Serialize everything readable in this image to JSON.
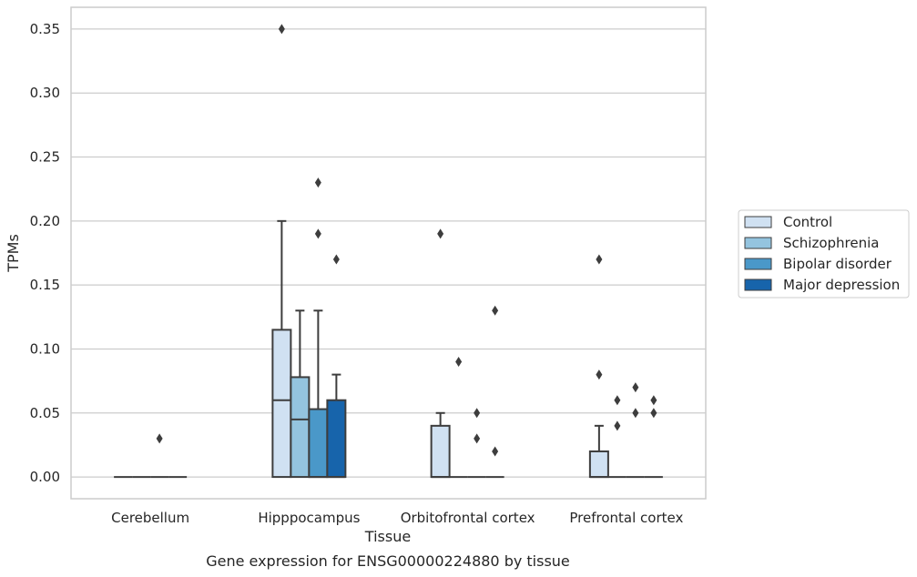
{
  "chart_data": {
    "type": "box",
    "title": "",
    "xlabel": "Tissue",
    "ylabel": "TPMs",
    "caption": "Gene expression for ENSG00000224880 by tissue",
    "categories": [
      "Cerebellum",
      "Hipppocampus",
      "Orbitofrontal cortex",
      "Prefrontal cortex"
    ],
    "ylim": [
      -0.017,
      0.367
    ],
    "yticks": [
      "0.00",
      "0.05",
      "0.10",
      "0.15",
      "0.20",
      "0.25",
      "0.30",
      "0.35"
    ],
    "grid": true,
    "legend_position": "right",
    "series": [
      {
        "name": "Control",
        "color": "#d0e1f2",
        "boxes": [
          {
            "q1": 0,
            "median": 0,
            "q3": 0,
            "whislo": 0,
            "whishi": 0,
            "fliers": []
          },
          {
            "q1": 0,
            "median": 0.06,
            "q3": 0.115,
            "whislo": 0,
            "whishi": 0.2,
            "fliers": [
              0.35
            ]
          },
          {
            "q1": 0,
            "median": 0,
            "q3": 0.04,
            "whislo": 0,
            "whishi": 0.05,
            "fliers": [
              0.19
            ]
          },
          {
            "q1": 0,
            "median": 0,
            "q3": 0.02,
            "whislo": 0,
            "whishi": 0.04,
            "fliers": [
              0.17,
              0.08
            ]
          }
        ]
      },
      {
        "name": "Schizophrenia",
        "color": "#94c4df",
        "boxes": [
          {
            "q1": 0,
            "median": 0,
            "q3": 0,
            "whislo": 0,
            "whishi": 0,
            "fliers": []
          },
          {
            "q1": 0,
            "median": 0.045,
            "q3": 0.078,
            "whislo": 0,
            "whishi": 0.13,
            "fliers": []
          },
          {
            "q1": 0,
            "median": 0,
            "q3": 0,
            "whislo": 0,
            "whishi": 0,
            "fliers": [
              0.09
            ]
          },
          {
            "q1": 0,
            "median": 0,
            "q3": 0,
            "whislo": 0,
            "whishi": 0,
            "fliers": [
              0.06,
              0.04
            ]
          }
        ]
      },
      {
        "name": "Bipolar disorder",
        "color": "#4a98c9",
        "boxes": [
          {
            "q1": 0,
            "median": 0,
            "q3": 0,
            "whislo": 0,
            "whishi": 0,
            "fliers": [
              0.03
            ]
          },
          {
            "q1": 0,
            "median": 0,
            "q3": 0.053,
            "whislo": 0,
            "whishi": 0.13,
            "fliers": [
              0.23,
              0.19
            ]
          },
          {
            "q1": 0,
            "median": 0,
            "q3": 0,
            "whislo": 0,
            "whishi": 0,
            "fliers": [
              0.05,
              0.03
            ]
          },
          {
            "q1": 0,
            "median": 0,
            "q3": 0,
            "whislo": 0,
            "whishi": 0,
            "fliers": [
              0.07,
              0.05
            ]
          }
        ]
      },
      {
        "name": "Major depression",
        "color": "#1764ab",
        "boxes": [
          {
            "q1": 0,
            "median": 0,
            "q3": 0,
            "whislo": 0,
            "whishi": 0,
            "fliers": []
          },
          {
            "q1": 0,
            "median": 0,
            "q3": 0.06,
            "whislo": 0,
            "whishi": 0.08,
            "fliers": [
              0.17
            ]
          },
          {
            "q1": 0,
            "median": 0,
            "q3": 0,
            "whislo": 0,
            "whishi": 0,
            "fliers": [
              0.13,
              0.02
            ]
          },
          {
            "q1": 0,
            "median": 0,
            "q3": 0,
            "whislo": 0,
            "whishi": 0,
            "fliers": [
              0.06,
              0.05
            ]
          }
        ]
      }
    ]
  }
}
